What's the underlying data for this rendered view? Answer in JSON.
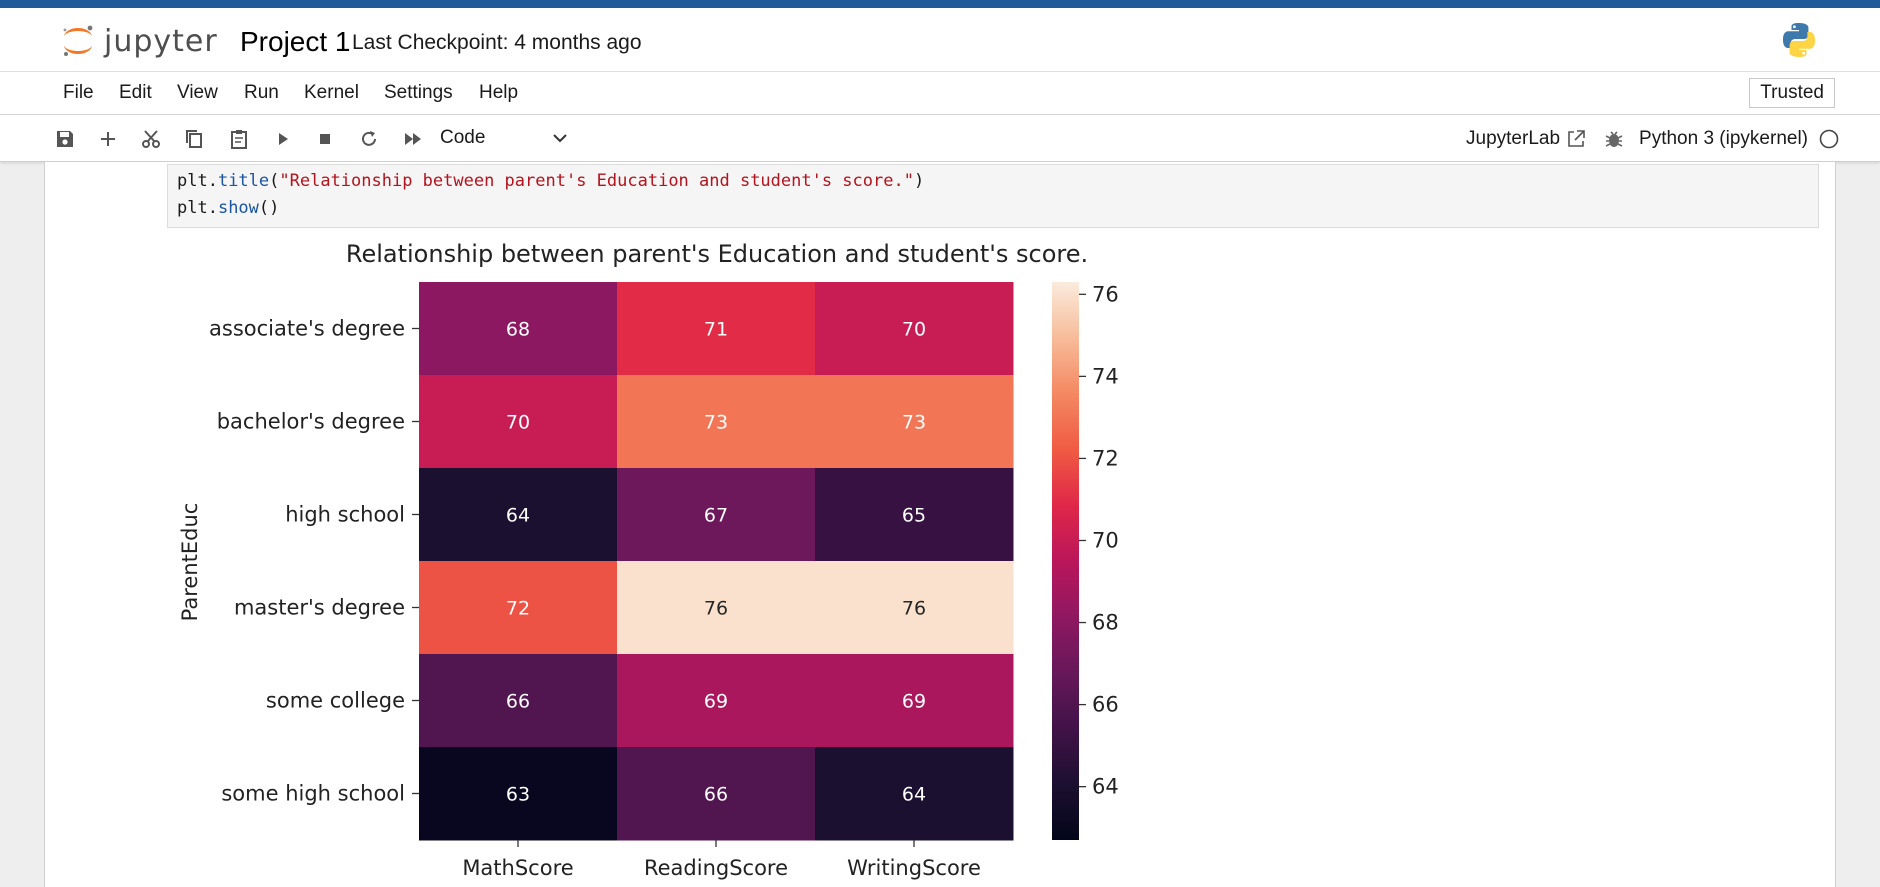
{
  "app": {
    "logo_text": "jupyter",
    "notebook_title": "Project 1",
    "checkpoint": "Last Checkpoint: 4 months ago",
    "brand_color": "#f37726",
    "topbar_color": "#1f5a9b"
  },
  "menu": {
    "items": [
      "File",
      "Edit",
      "View",
      "Run",
      "Kernel",
      "Settings",
      "Help"
    ],
    "trusted": "Trusted"
  },
  "toolbar": {
    "icons": [
      "save-icon",
      "add-icon",
      "cut-icon",
      "copy-icon",
      "paste-icon",
      "run-icon",
      "stop-icon",
      "restart-icon",
      "fast-forward-icon"
    ],
    "cell_type": "Code",
    "jupyterlab_label": "JupyterLab",
    "kernel_name": "Python 3 (ipykernel)"
  },
  "code": {
    "line1_obj": "plt.",
    "line1_fn": "title",
    "line1_open": "(",
    "line1_str": "\"Relationship between parent's Education and student's score.\"",
    "line1_close": ")",
    "line2_obj": "plt.",
    "line2_fn": "show",
    "line2_rest": "()"
  },
  "chart_data": {
    "type": "heatmap",
    "title": "Relationship between parent's Education and student's score.",
    "ylabel": "ParentEduc",
    "xlabel": "",
    "x_categories": [
      "MathScore",
      "ReadingScore",
      "WritingScore"
    ],
    "y_categories": [
      "associate's degree",
      "bachelor's degree",
      "high school",
      "master's degree",
      "some college",
      "some high school"
    ],
    "values": [
      [
        68,
        71,
        70
      ],
      [
        70,
        73,
        73
      ],
      [
        64,
        67,
        65
      ],
      [
        72,
        76,
        76
      ],
      [
        66,
        69,
        69
      ],
      [
        63,
        66,
        64
      ]
    ],
    "colorbar_ticks": [
      64,
      66,
      68,
      70,
      72,
      74,
      76
    ],
    "colorbar_range": [
      62.7,
      76.3
    ],
    "colormap": "rocket",
    "annotations": true
  }
}
